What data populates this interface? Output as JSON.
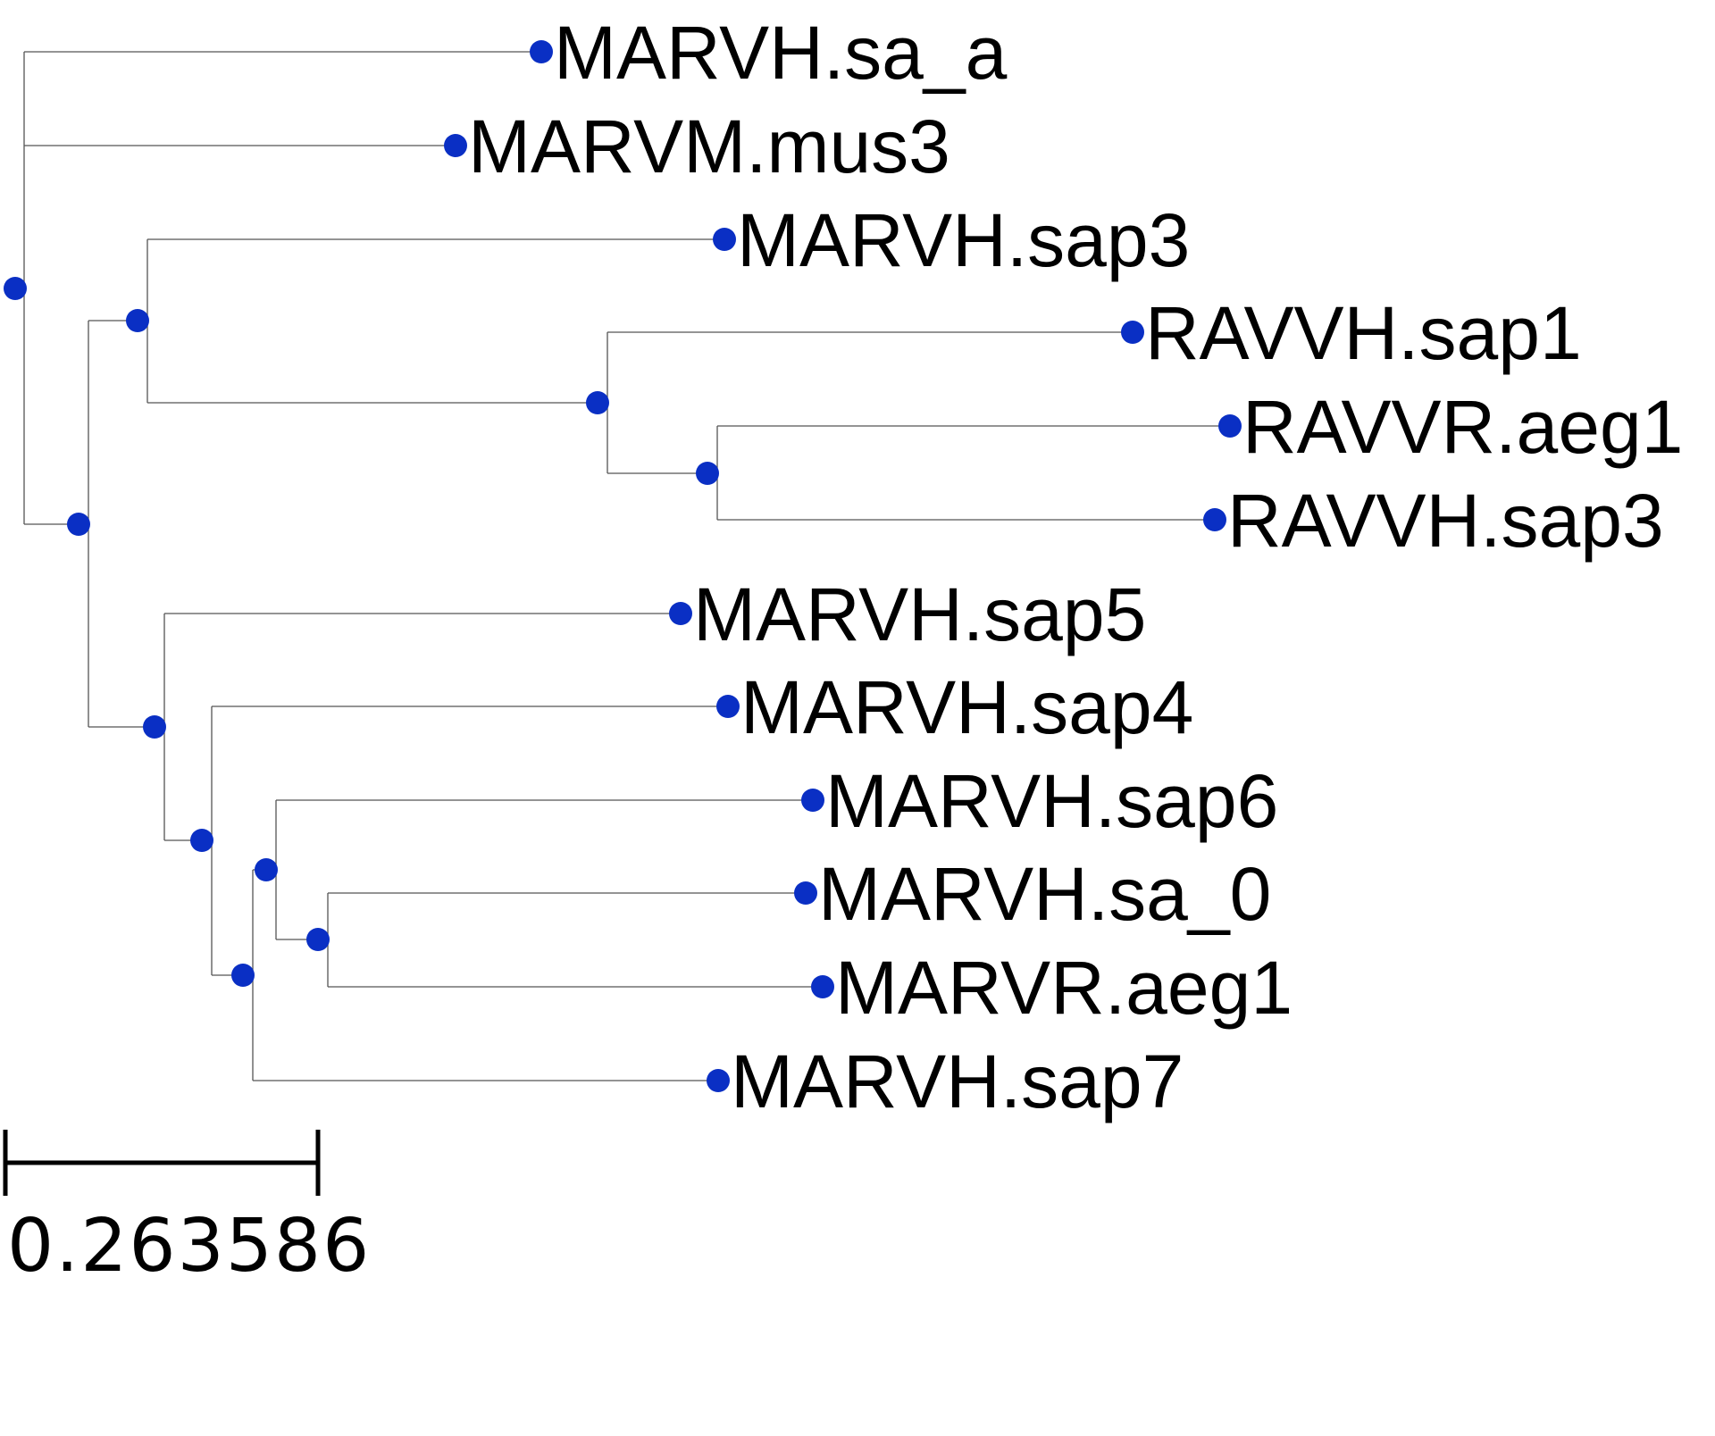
{
  "tree": {
    "node_color": "#0a2fc4",
    "branch_color": "#555555",
    "leaves": [
      {
        "id": "L1",
        "label": "MARVH.sa_a"
      },
      {
        "id": "L2",
        "label": "MARVM.mus3"
      },
      {
        "id": "L3",
        "label": "MARVH.sap3"
      },
      {
        "id": "L4",
        "label": "RAVVH.sap1"
      },
      {
        "id": "L5",
        "label": "RAVVR.aeg1"
      },
      {
        "id": "L6",
        "label": "RAVVH.sap3"
      },
      {
        "id": "L7",
        "label": "MARVH.sap5"
      },
      {
        "id": "L8",
        "label": "MARVH.sap4"
      },
      {
        "id": "L9",
        "label": "MARVH.sap6"
      },
      {
        "id": "L10",
        "label": "MARVH.sa_0"
      },
      {
        "id": "L11",
        "label": "MARVR.aeg1"
      },
      {
        "id": "L12",
        "label": "MARVH.sap7"
      }
    ]
  },
  "scale_bar": {
    "label": "0.263586",
    "value": 0.263586
  }
}
